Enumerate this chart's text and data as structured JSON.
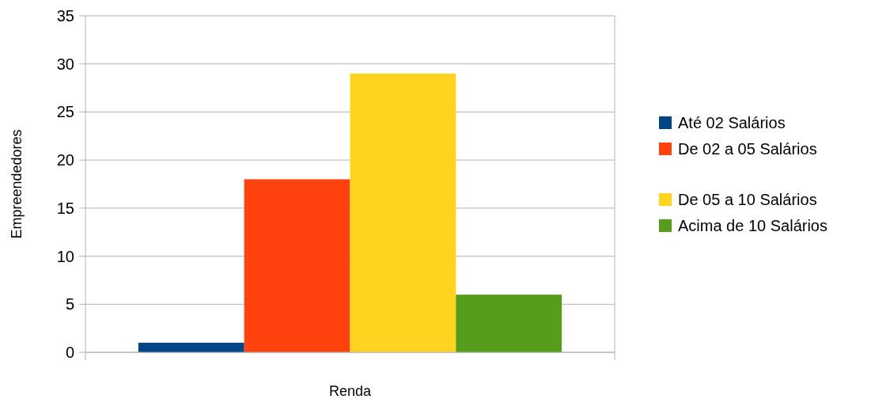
{
  "chart_data": {
    "type": "bar",
    "xlabel": "Renda",
    "ylabel": "Empreendedores",
    "categories": [
      null
    ],
    "series": [
      {
        "name": "Até 02 Salários",
        "color": "#004586",
        "values": [
          1
        ]
      },
      {
        "name": "De 02 a 05 Salários",
        "color": "#ff420e",
        "values": [
          18
        ]
      },
      {
        "name": "De 05 a 10 Salários",
        "color": "#ffd320",
        "values": [
          29
        ]
      },
      {
        "name": "Acima de 10 Salários",
        "color": "#579d1c",
        "values": [
          6
        ]
      }
    ],
    "ylim": [
      0,
      35
    ],
    "yticks": [
      0,
      5,
      10,
      15,
      20,
      25,
      30,
      35
    ],
    "grid": "y",
    "legend": "right"
  }
}
